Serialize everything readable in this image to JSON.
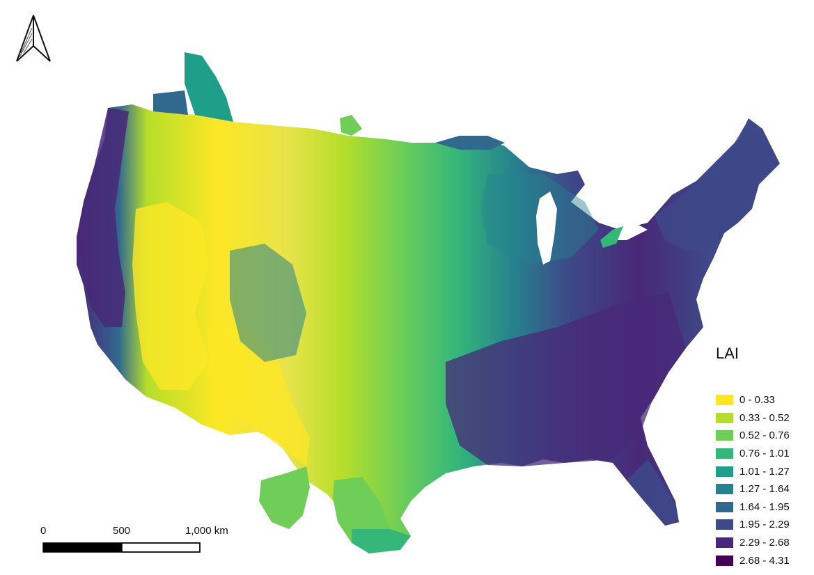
{
  "legend": {
    "title": "LAI",
    "classes": [
      {
        "label": "0 - 0.33",
        "color": "#fde725"
      },
      {
        "label": "0.33 - 0.52",
        "color": "#b5de2b"
      },
      {
        "label": "0.52 - 0.76",
        "color": "#6ece58"
      },
      {
        "label": "0.76 - 1.01",
        "color": "#35b779"
      },
      {
        "label": "1.01 - 1.27",
        "color": "#1f9e89"
      },
      {
        "label": "1.27 - 1.64",
        "color": "#26828e"
      },
      {
        "label": "1.64 - 1.95",
        "color": "#31688e"
      },
      {
        "label": "1.95 - 2.29",
        "color": "#3e4989"
      },
      {
        "label": "2.29 - 2.68",
        "color": "#482878"
      },
      {
        "label": "2.68 - 4.31",
        "color": "#440154"
      }
    ]
  },
  "scale_bar": {
    "labels": [
      "0",
      "500",
      "1,000 km"
    ]
  },
  "north_arrow": {
    "icon": "north-arrow-icon"
  }
}
